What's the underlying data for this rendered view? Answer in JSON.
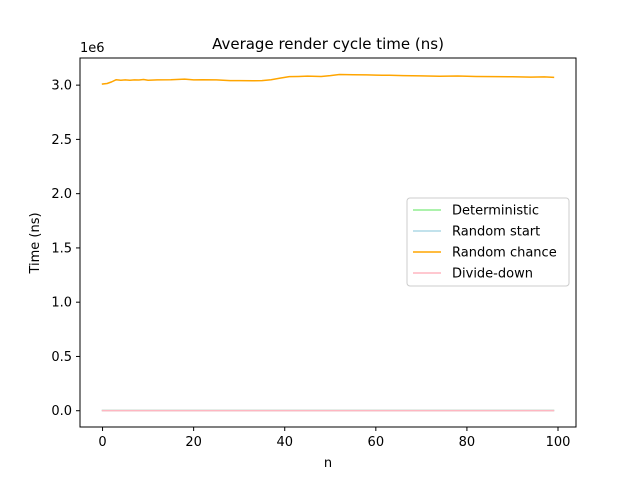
{
  "chart_data": {
    "type": "line",
    "title": "Average render cycle time (ns)",
    "xlabel": "n",
    "ylabel": "Time (ns)",
    "y_offset_label": "1e6",
    "xlim": [
      -4.95,
      103.95
    ],
    "ylim": [
      -150000,
      3250000
    ],
    "x_ticks": [
      0,
      20,
      40,
      60,
      80,
      100
    ],
    "y_ticks": [
      0,
      500000,
      1000000,
      1500000,
      2000000,
      2500000,
      3000000
    ],
    "y_tick_labels": [
      "0.0",
      "0.5",
      "1.0",
      "1.5",
      "2.0",
      "2.5",
      "3.0"
    ],
    "legend_position": "center-right",
    "grid": false,
    "series": [
      {
        "name": "Deterministic",
        "color": "#90ee90",
        "points": [
          [
            0,
            1500
          ],
          [
            20,
            1500
          ],
          [
            40,
            1500
          ],
          [
            60,
            1500
          ],
          [
            80,
            1500
          ],
          [
            99,
            1500
          ]
        ]
      },
      {
        "name": "Random start",
        "color": "#add8e6",
        "points": [
          [
            0,
            2000
          ],
          [
            20,
            2000
          ],
          [
            40,
            2000
          ],
          [
            60,
            2000
          ],
          [
            80,
            2000
          ],
          [
            99,
            2000
          ]
        ]
      },
      {
        "name": "Random chance",
        "color": "#ffa500",
        "points": [
          [
            0,
            3010000
          ],
          [
            1,
            3015000
          ],
          [
            2,
            3030000
          ],
          [
            3,
            3050000
          ],
          [
            4,
            3045000
          ],
          [
            5,
            3048000
          ],
          [
            6,
            3045000
          ],
          [
            7,
            3048000
          ],
          [
            8,
            3047000
          ],
          [
            9,
            3052000
          ],
          [
            10,
            3045000
          ],
          [
            12,
            3048000
          ],
          [
            15,
            3050000
          ],
          [
            18,
            3055000
          ],
          [
            20,
            3048000
          ],
          [
            22,
            3050000
          ],
          [
            25,
            3048000
          ],
          [
            28,
            3042000
          ],
          [
            30,
            3042000
          ],
          [
            33,
            3040000
          ],
          [
            35,
            3042000
          ],
          [
            37,
            3050000
          ],
          [
            39,
            3065000
          ],
          [
            41,
            3078000
          ],
          [
            43,
            3080000
          ],
          [
            45,
            3083000
          ],
          [
            48,
            3080000
          ],
          [
            50,
            3088000
          ],
          [
            52,
            3098000
          ],
          [
            55,
            3096000
          ],
          [
            58,
            3094000
          ],
          [
            60,
            3092000
          ],
          [
            63,
            3091000
          ],
          [
            66,
            3088000
          ],
          [
            70,
            3085000
          ],
          [
            74,
            3082000
          ],
          [
            78,
            3084000
          ],
          [
            82,
            3080000
          ],
          [
            86,
            3078000
          ],
          [
            90,
            3077000
          ],
          [
            94,
            3074000
          ],
          [
            97,
            3076000
          ],
          [
            99,
            3072000
          ]
        ]
      },
      {
        "name": "Divide-down",
        "color": "#ffb6c1",
        "points": [
          [
            0,
            1000
          ],
          [
            20,
            1000
          ],
          [
            40,
            1000
          ],
          [
            60,
            1000
          ],
          [
            80,
            1000
          ],
          [
            99,
            1000
          ]
        ]
      }
    ]
  }
}
